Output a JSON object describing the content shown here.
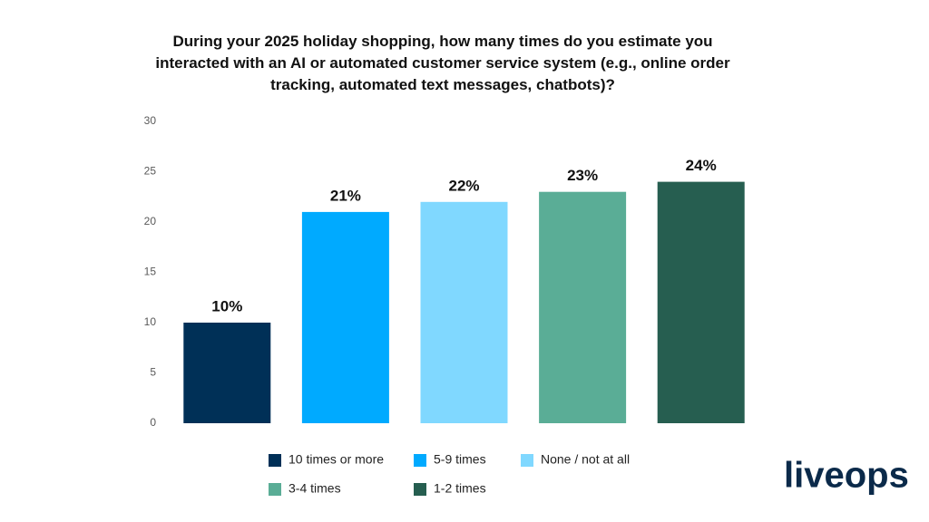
{
  "chart_data": {
    "type": "bar",
    "title": "During your 2025 holiday shopping, how many times do you estimate you interacted with an AI or automated customer service system (e.g., online order tracking, automated text messages, chatbots)?",
    "categories": [
      "10 times or more",
      "5-9 times",
      "None / not at all",
      "3-4 times",
      "1-2 times"
    ],
    "values": [
      10,
      21,
      22,
      23,
      24
    ],
    "value_labels": [
      "10%",
      "21%",
      "22%",
      "23%",
      "24%"
    ],
    "colors": [
      "#003057",
      "#00aaff",
      "#80d8ff",
      "#5aad96",
      "#265e50"
    ],
    "ylim": [
      0,
      30
    ],
    "yticks": [
      0,
      5,
      10,
      15,
      20,
      25,
      30
    ],
    "grid": false
  },
  "logo": "liveops"
}
